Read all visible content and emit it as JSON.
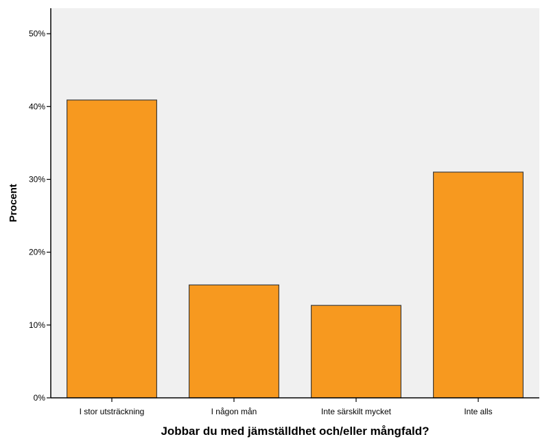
{
  "chart_data": {
    "type": "bar",
    "title": "",
    "xlabel": "Jobbar du med jämställdhet och/eller mångfald?",
    "ylabel": "Procent",
    "categories": [
      "I stor utsträckning",
      "I någon mån",
      "Inte särskilt mycket",
      "Inte alls"
    ],
    "values": [
      40.9,
      15.5,
      12.7,
      31.0
    ],
    "ylim": [
      0,
      53.5
    ],
    "yticks": [
      0,
      10,
      20,
      30,
      40,
      50
    ],
    "ytick_labels": [
      "0%",
      "10%",
      "20%",
      "30%",
      "40%",
      "50%"
    ],
    "grid": false,
    "legend": "none",
    "colors": {
      "bar_fill": "#F7991F",
      "bar_stroke": "#3C3C3C",
      "plot_background": "#F0F0F0",
      "axis": "#000000"
    }
  }
}
